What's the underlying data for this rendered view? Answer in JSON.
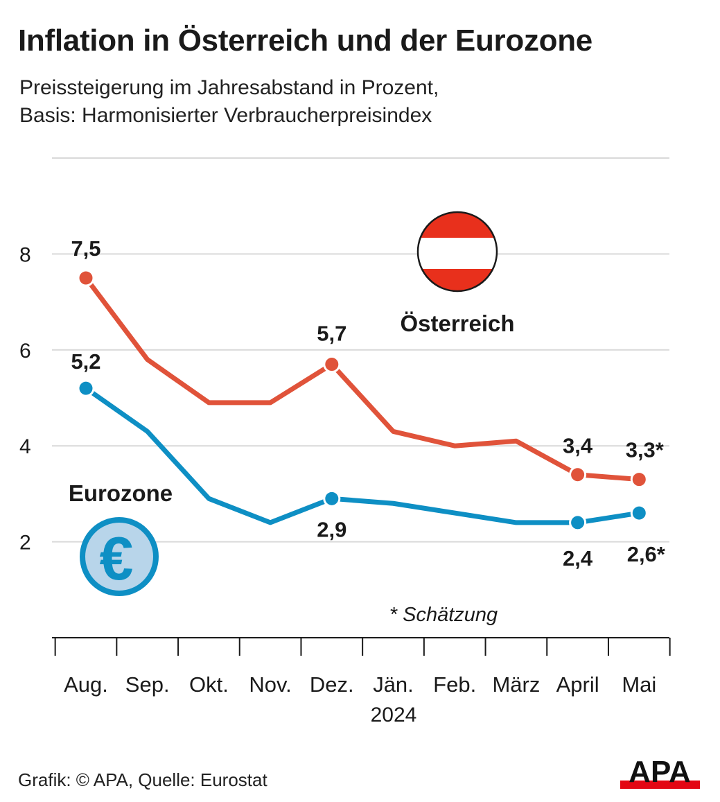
{
  "title": "Inflation in Österreich und der Eurozone",
  "subtitle_line1": "Preissteigerung im Jahresabstand in Prozent,",
  "subtitle_line2": "Basis: Harmonisierter Verbraucherpreisindex",
  "footer": "Grafik: © APA, Quelle: Eurostat",
  "logo_text": "APA",
  "note": "* Schätzung",
  "year_label": "2024",
  "euro_symbol": "€",
  "colors": {
    "austria": "#e0533a",
    "eurozone": "#0e8fc4",
    "flag_red": "#e8301c",
    "euro_fill": "#b8d5ea",
    "grid": "#d9d9d9",
    "logo_red": "#e30613"
  },
  "chart_data": {
    "type": "line",
    "x": [
      "Aug.",
      "Sep.",
      "Okt.",
      "Nov.",
      "Dez.",
      "Jän.",
      "Feb.",
      "März",
      "April",
      "Mai"
    ],
    "yticks": [
      "2",
      "4",
      "6",
      "8"
    ],
    "ylim": [
      0,
      10
    ],
    "grid": true,
    "series": [
      {
        "name": "Österreich",
        "values": [
          7.5,
          5.8,
          4.9,
          4.9,
          5.7,
          4.3,
          4.0,
          4.1,
          3.4,
          3.3
        ],
        "labels": [
          {
            "index": 0,
            "text": "7,5"
          },
          {
            "index": 4,
            "text": "5,7"
          },
          {
            "index": 8,
            "text": "3,4"
          },
          {
            "index": 9,
            "text": "3,3*"
          }
        ]
      },
      {
        "name": "Eurozone",
        "values": [
          5.2,
          4.3,
          2.9,
          2.4,
          2.9,
          2.8,
          2.6,
          2.4,
          2.4,
          2.6
        ],
        "labels": [
          {
            "index": 0,
            "text": "5,2"
          },
          {
            "index": 4,
            "text": "2,9"
          },
          {
            "index": 8,
            "text": "2,4"
          },
          {
            "index": 9,
            "text": "2,6*"
          }
        ]
      }
    ]
  }
}
